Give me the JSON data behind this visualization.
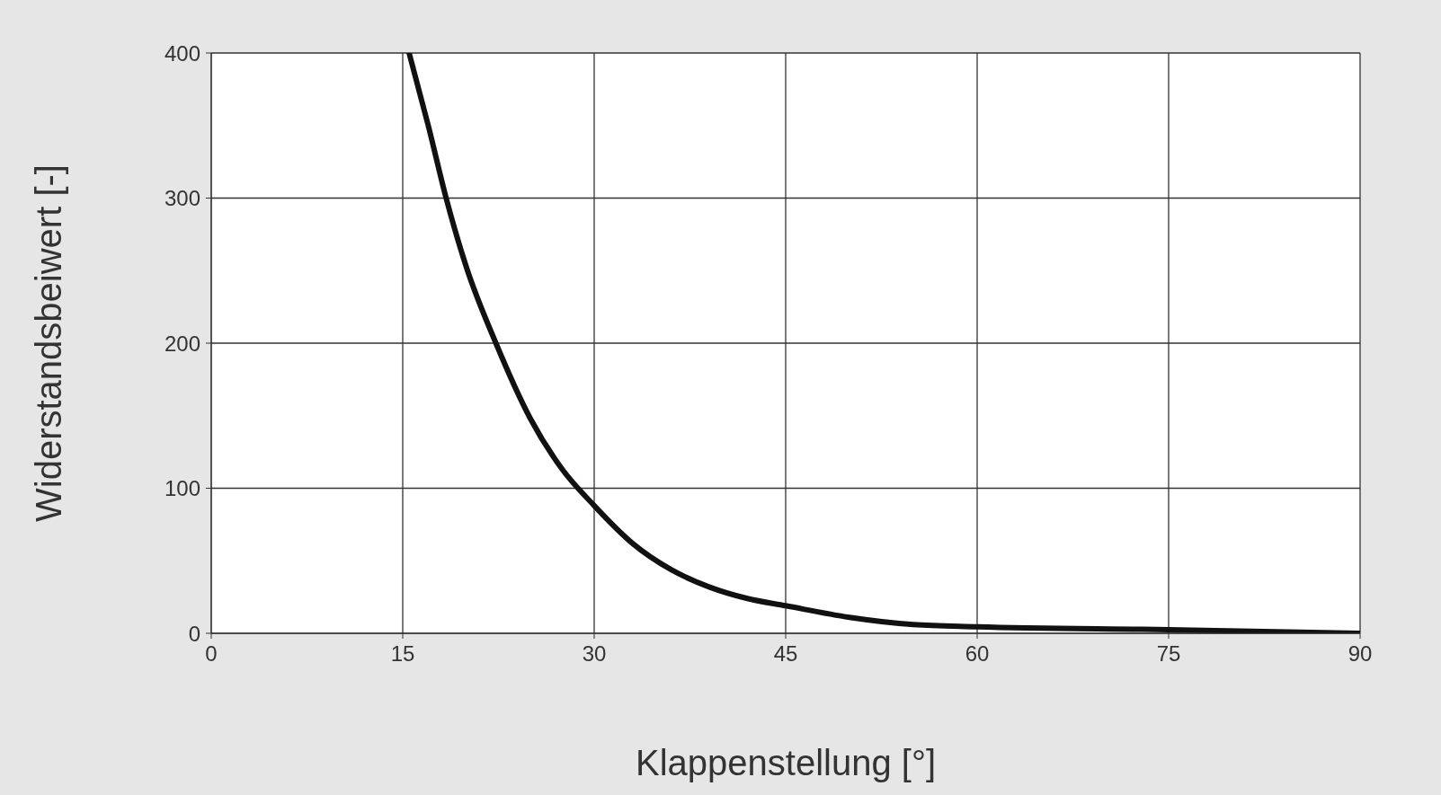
{
  "chart_data": {
    "type": "line",
    "xlabel": "Klappenstellung [°]",
    "ylabel": "Widerstandsbeiwert [-]",
    "series": [
      {
        "color": "#111111",
        "x": [
          15.5,
          17,
          18.4,
          20,
          22.3,
          25,
          27.5,
          30,
          33,
          36,
          39,
          42,
          45,
          50,
          55,
          60,
          75,
          90
        ],
        "values": [
          400,
          350,
          300,
          252,
          200,
          148,
          113,
          88,
          62,
          44,
          32,
          24,
          19,
          11,
          6,
          4.5,
          2.5,
          0
        ]
      }
    ],
    "xlim": [
      0,
      90
    ],
    "xticks": [
      0,
      15,
      30,
      45,
      60,
      75,
      90
    ],
    "ylim": [
      0,
      400
    ],
    "yticks": [
      0,
      100,
      200,
      300,
      400
    ],
    "grid": true,
    "legend": false,
    "marker": "none",
    "line_style": "solid"
  }
}
